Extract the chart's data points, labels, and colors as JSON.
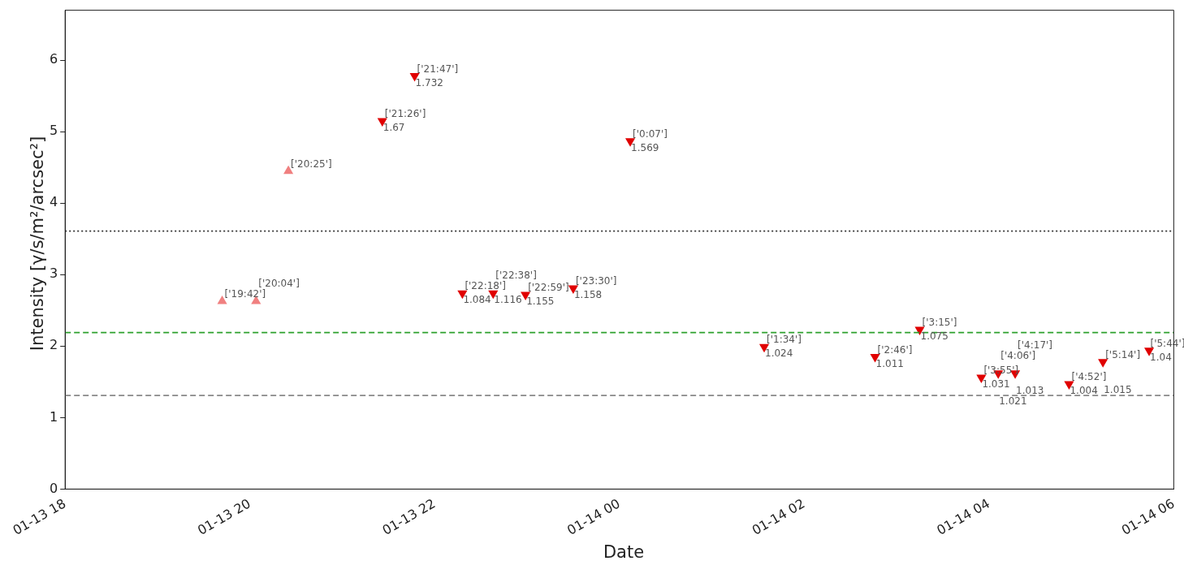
{
  "chart_data": {
    "type": "scatter",
    "xlabel": "Date",
    "ylabel": "Intensity [γ/s/m²/arcsec²]",
    "xlim": [
      "--01-13T18:00",
      "--01-14T06:00"
    ],
    "xticks": [
      {
        "value": "--01-13T18:00",
        "label": "01-13 18"
      },
      {
        "value": "--01-13T20:00",
        "label": "01-13 20"
      },
      {
        "value": "--01-13T22:00",
        "label": "01-13 22"
      },
      {
        "value": "--01-14T00:00",
        "label": "01-14 00"
      },
      {
        "value": "--01-14T02:00",
        "label": "01-14 02"
      },
      {
        "value": "--01-14T04:00",
        "label": "01-14 04"
      },
      {
        "value": "--01-14T06:00",
        "label": "01-14 06"
      }
    ],
    "ylim": [
      0,
      6.7
    ],
    "yticks": [
      0,
      1,
      2,
      3,
      4,
      5,
      6
    ],
    "grid": false,
    "legend": false,
    "series": [
      {
        "color": "#f08080",
        "marker": "triangle",
        "x": [
          "--01-13T19:42",
          "--01-13T20:04",
          "--01-13T20:25"
        ],
        "values": [
          2.63,
          2.63,
          4.45
        ],
        "value_labels": [
          "['19:42']",
          "['20:04']",
          "['20:25']"
        ]
      },
      {
        "color": "#e00000",
        "marker": "triangle-down",
        "x": [
          "--01-13T21:26",
          "--01-13T21:47",
          "--01-13T22:18",
          "--01-13T22:38",
          "--01-13T22:59",
          "--01-13T23:30",
          "--01-14T00:07",
          "--01-14T01:34",
          "--01-14T02:46",
          "--01-14T03:15",
          "--01-14T03:55",
          "--01-14T04:06",
          "--01-14T04:17",
          "--01-14T04:52",
          "--01-14T05:14",
          "--01-14T05:44"
        ],
        "values": [
          5.15,
          5.78,
          2.74,
          2.74,
          2.72,
          2.81,
          4.87,
          1.99,
          1.85,
          2.23,
          1.56,
          1.62,
          1.62,
          1.47,
          1.78,
          1.94
        ],
        "value_labels": [
          "['21:26']",
          "['21:47']",
          "['22:18']",
          "['22:38']",
          "['22:59']",
          "['23:30']",
          "['0:07']",
          "['1:34']",
          "['2:46']",
          "['3:15']",
          "['3:55']",
          "['4:06']",
          "['4:17']",
          "['4:52']",
          "['5:14']",
          "['5:44']"
        ]
      }
    ],
    "annotations": [
      {
        "text": "1.67",
        "x": "--01-13T21:26",
        "y": 5.15
      },
      {
        "text": "1.732",
        "x": "--01-13T21:47",
        "y": 5.78
      },
      {
        "text": "1.084",
        "x": "--01-13T22:18",
        "y": 2.74
      },
      {
        "text": "1.116",
        "x": "--01-13T22:38",
        "y": 2.74
      },
      {
        "text": "1.155",
        "x": "--01-13T22:59",
        "y": 2.72
      },
      {
        "text": "1.158",
        "x": "--01-13T23:30",
        "y": 2.81
      },
      {
        "text": "1.569",
        "x": "--01-14T00:07",
        "y": 4.87
      },
      {
        "text": "1.024",
        "x": "--01-14T01:34",
        "y": 1.99
      },
      {
        "text": "1.011",
        "x": "--01-14T02:46",
        "y": 1.85
      },
      {
        "text": "1.075",
        "x": "--01-14T03:15",
        "y": 2.23
      },
      {
        "text": "1.031",
        "x": "--01-14T03:55",
        "y": 1.56
      },
      {
        "text": "1.021",
        "x": "--01-14T04:06",
        "y": 1.62
      },
      {
        "text": "1.013",
        "x": "--01-14T04:17",
        "y": 1.62
      },
      {
        "text": "1.004",
        "x": "--01-14T04:52",
        "y": 1.47
      },
      {
        "text": "1.015",
        "x": "--01-14T05:14",
        "y": 1.78
      },
      {
        "text": "1.04",
        "x": "--01-14T05:44",
        "y": 1.94
      }
    ],
    "ref_lines": [
      {
        "axis": "y",
        "value": 3.61,
        "color": "#333333",
        "line_style": "dotted"
      },
      {
        "axis": "y",
        "value": 2.19,
        "color": "#2ca02c",
        "line_style": "dashed"
      },
      {
        "axis": "y",
        "value": 1.31,
        "color": "#888888",
        "line_style": "dashed"
      }
    ]
  }
}
